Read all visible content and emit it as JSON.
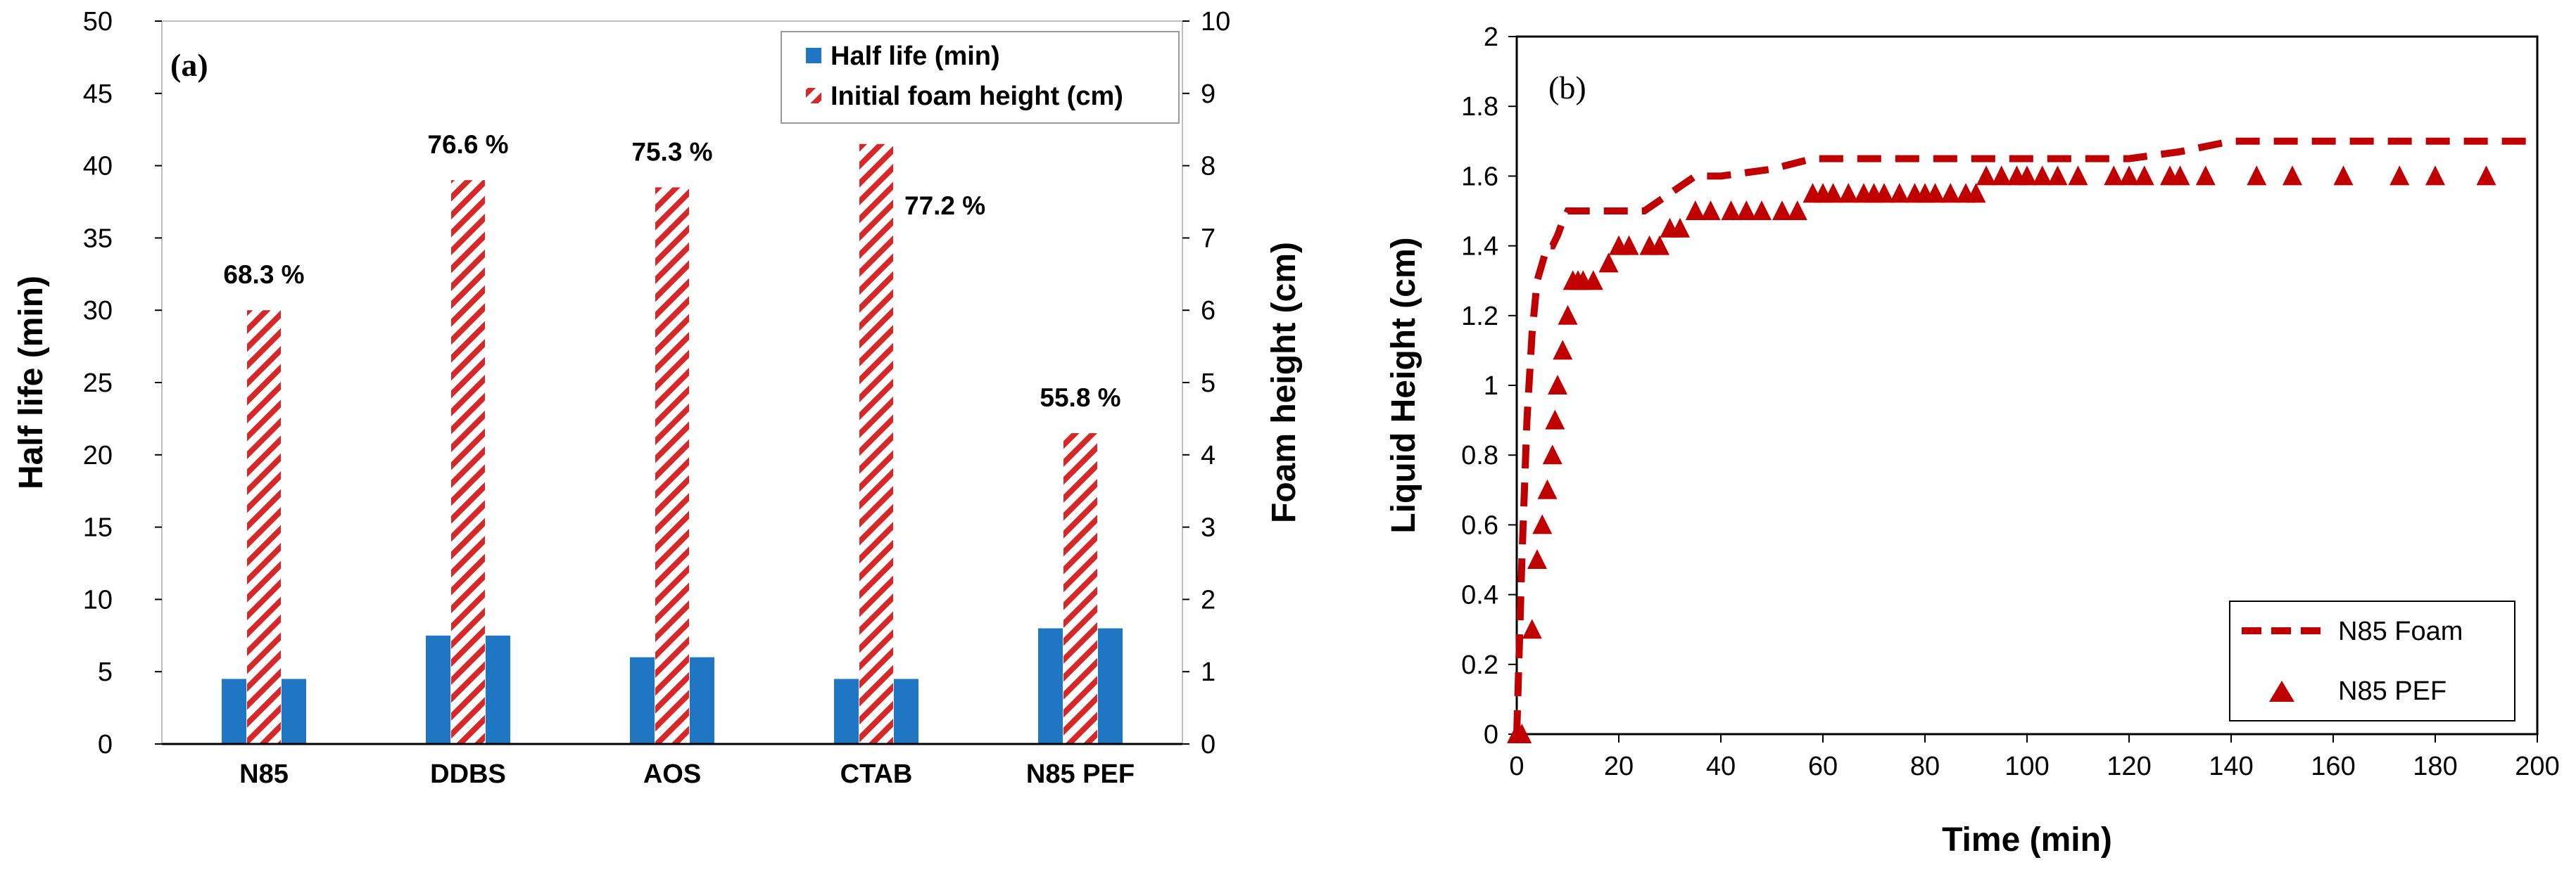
{
  "chart_data": [
    {
      "type": "bar",
      "panel_label": "(a)",
      "categories": [
        "N85",
        "DDBS",
        "AOS",
        "CTAB",
        "N85 PEF"
      ],
      "series": [
        {
          "name": "Half life (min)",
          "axis": "left",
          "color": "#1f77c4",
          "values": [
            4.5,
            7.5,
            6.0,
            4.5,
            8.0
          ]
        },
        {
          "name": "Initial foam height (cm)",
          "axis": "right",
          "color": "#d62828",
          "values": [
            6.0,
            7.8,
            7.7,
            8.3,
            4.3
          ]
        }
      ],
      "percent_labels": [
        "68.3 %",
        "76.6 %",
        "75.3 %",
        "77.2 %",
        "55.8 %"
      ],
      "ylabel": "Half life (min)",
      "ylabel_right": "Foam height (cm)",
      "ylim": [
        0,
        50
      ],
      "ylim_right": [
        0,
        10
      ],
      "yticks": [
        "0",
        "5",
        "10",
        "15",
        "20",
        "25",
        "30",
        "35",
        "40",
        "45",
        "50"
      ],
      "yticks_right": [
        "0",
        "1",
        "2",
        "3",
        "4",
        "5",
        "6",
        "7",
        "8",
        "9",
        "10"
      ],
      "legend": "top-right"
    },
    {
      "type": "line",
      "panel_label": "(b)",
      "xlabel": "Time (min)",
      "ylabel": "Liquid Height (cm)",
      "xlim": [
        0,
        200
      ],
      "ylim": [
        0,
        2
      ],
      "xticks": [
        "0",
        "20",
        "40",
        "60",
        "80",
        "100",
        "120",
        "140",
        "160",
        "180",
        "200"
      ],
      "yticks": [
        "0",
        "0.2",
        "0.4",
        "0.6",
        "0.8",
        "1",
        "1.2",
        "1.4",
        "1.6",
        "1.8",
        "2"
      ],
      "legend": "bottom-right",
      "series": [
        {
          "name": "N85 Foam",
          "style": "dashed-line",
          "color": "#c00000",
          "x": [
            0,
            1,
            2,
            3,
            4,
            5,
            6,
            7,
            8,
            9,
            10,
            12,
            15,
            20,
            25,
            30,
            35,
            40,
            50,
            58,
            60,
            120,
            130,
            140,
            150,
            200
          ],
          "y": [
            0,
            0.5,
            0.9,
            1.15,
            1.3,
            1.35,
            1.4,
            1.4,
            1.43,
            1.47,
            1.5,
            1.5,
            1.5,
            1.5,
            1.5,
            1.55,
            1.6,
            1.6,
            1.62,
            1.65,
            1.65,
            1.65,
            1.67,
            1.7,
            1.7,
            1.7
          ]
        },
        {
          "name": "N85 PEF",
          "style": "triangle-markers",
          "color": "#c00000",
          "x": [
            0,
            1,
            3,
            4,
            5,
            6,
            7,
            7.5,
            8,
            9,
            10,
            11,
            12,
            13,
            15,
            18,
            20,
            22,
            26,
            28,
            30,
            32,
            35,
            38,
            42,
            45,
            48,
            52,
            55,
            58,
            60,
            62,
            65,
            68,
            70,
            72,
            75,
            78,
            80,
            82,
            85,
            88,
            90,
            92,
            95,
            98,
            100,
            103,
            106,
            110,
            117,
            120,
            123,
            128,
            130,
            135,
            145,
            152,
            162,
            173,
            180,
            190
          ],
          "y": [
            0,
            0,
            0.3,
            0.5,
            0.6,
            0.7,
            0.8,
            0.9,
            1.0,
            1.1,
            1.2,
            1.3,
            1.3,
            1.3,
            1.3,
            1.35,
            1.4,
            1.4,
            1.4,
            1.4,
            1.45,
            1.45,
            1.5,
            1.5,
            1.5,
            1.5,
            1.5,
            1.5,
            1.5,
            1.55,
            1.55,
            1.55,
            1.55,
            1.55,
            1.55,
            1.55,
            1.55,
            1.55,
            1.55,
            1.55,
            1.55,
            1.55,
            1.55,
            1.6,
            1.6,
            1.6,
            1.6,
            1.6,
            1.6,
            1.6,
            1.6,
            1.6,
            1.6,
            1.6,
            1.6,
            1.6,
            1.6,
            1.6,
            1.6,
            1.6,
            1.6,
            1.6
          ]
        }
      ]
    }
  ]
}
